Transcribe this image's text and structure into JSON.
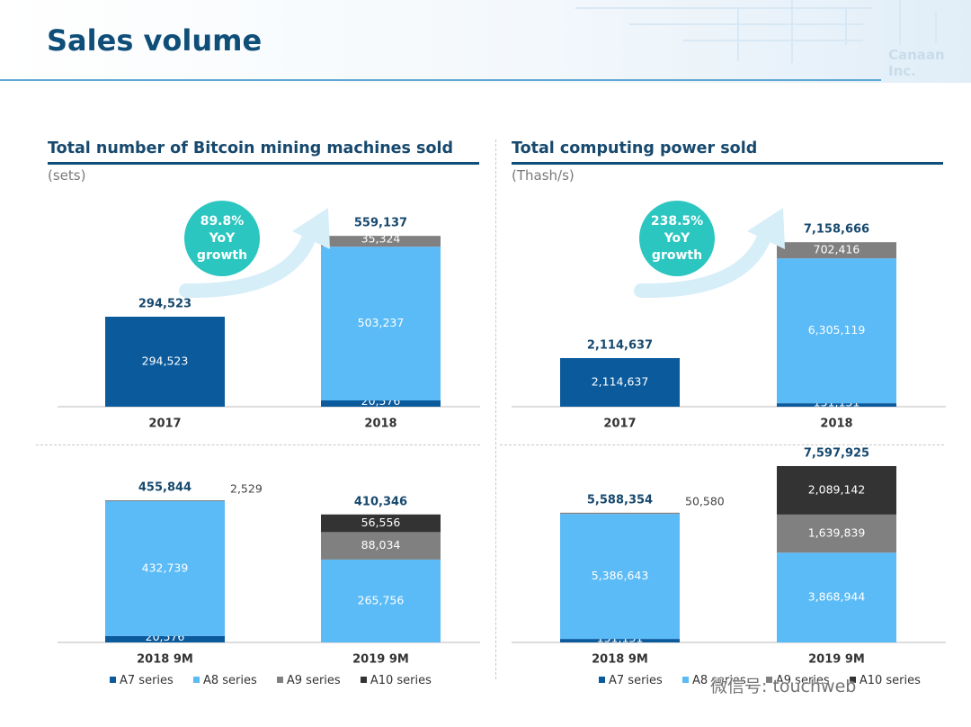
{
  "page": {
    "title": "Sales volume",
    "brand": "Canaan Inc.",
    "watermark": "微信号: touchweb"
  },
  "colors": {
    "A7": "#0a5a9c",
    "A8": "#5bbbf7",
    "A9": "#808080",
    "A10": "#333333",
    "growth_circle": "#2bc6c0",
    "title_blue": "#0e4e78"
  },
  "panels": {
    "left": {
      "title": "Total number of Bitcoin mining machines sold",
      "unit": "(sets)"
    },
    "right": {
      "title": "Total computing power sold",
      "unit": "(Thash/s)"
    }
  },
  "legend": {
    "items": [
      {
        "name": "A7 series",
        "color": "#0a5a9c"
      },
      {
        "name": "A8 series",
        "color": "#5bbbf7"
      },
      {
        "name": "A9 series",
        "color": "#808080"
      },
      {
        "name": "A10 series",
        "color": "#333333"
      }
    ]
  },
  "chart_data": [
    {
      "type": "bar",
      "stacked": true,
      "title": "Total number of Bitcoin mining machines sold",
      "unit": "(sets)",
      "categories": [
        "2017",
        "2018"
      ],
      "series": [
        {
          "name": "A7 series",
          "values": [
            294523,
            20576
          ],
          "labels": [
            "294,523",
            "20,576"
          ]
        },
        {
          "name": "A8 series",
          "values": [
            0,
            503237
          ],
          "labels": [
            "",
            "503,237"
          ]
        },
        {
          "name": "A9 series",
          "values": [
            0,
            35324
          ],
          "labels": [
            "",
            "35,324"
          ]
        },
        {
          "name": "A10 series",
          "values": [
            0,
            0
          ],
          "labels": [
            "",
            ""
          ]
        }
      ],
      "totals": [
        294523,
        559137
      ],
      "total_labels": [
        "294,523",
        "559,137"
      ],
      "growth": {
        "lines": [
          "89.8%",
          "YoY",
          "growth"
        ]
      }
    },
    {
      "type": "bar",
      "stacked": true,
      "title": "Total computing power sold",
      "unit": "(Thash/s)",
      "categories": [
        "2017",
        "2018"
      ],
      "series": [
        {
          "name": "A7 series",
          "values": [
            2114637,
            151131
          ],
          "labels": [
            "2,114,637",
            "151,131"
          ]
        },
        {
          "name": "A8 series",
          "values": [
            0,
            6305119
          ],
          "labels": [
            "",
            "6,305,119"
          ]
        },
        {
          "name": "A9 series",
          "values": [
            0,
            702416
          ],
          "labels": [
            "",
            "702,416"
          ]
        },
        {
          "name": "A10 series",
          "values": [
            0,
            0
          ],
          "labels": [
            "",
            ""
          ]
        }
      ],
      "totals": [
        2114637,
        7158666
      ],
      "total_labels": [
        "2,114,637",
        "7,158,666"
      ],
      "growth": {
        "lines": [
          "238.5%",
          "YoY",
          "growth"
        ]
      }
    },
    {
      "type": "bar",
      "stacked": true,
      "title": "Total number of Bitcoin mining machines sold",
      "unit": "(sets)",
      "categories": [
        "2018 9M",
        "2019 9M"
      ],
      "series": [
        {
          "name": "A7 series",
          "values": [
            20576,
            0
          ],
          "labels": [
            "20,576",
            ""
          ]
        },
        {
          "name": "A8 series",
          "values": [
            432739,
            265756
          ],
          "labels": [
            "432,739",
            "265,756"
          ]
        },
        {
          "name": "A9 series",
          "values": [
            2529,
            88034
          ],
          "labels": [
            "2,529",
            "88,034"
          ]
        },
        {
          "name": "A10 series",
          "values": [
            0,
            56556
          ],
          "labels": [
            "",
            "56,556"
          ]
        }
      ],
      "totals": [
        455844,
        410346
      ],
      "total_labels": [
        "455,844",
        "410,346"
      ]
    },
    {
      "type": "bar",
      "stacked": true,
      "title": "Total computing power sold",
      "unit": "(Thash/s)",
      "categories": [
        "2018 9M",
        "2019 9M"
      ],
      "series": [
        {
          "name": "A7 series",
          "values": [
            151131,
            0
          ],
          "labels": [
            "151,131",
            ""
          ]
        },
        {
          "name": "A8 series",
          "values": [
            5386643,
            3868944
          ],
          "labels": [
            "5,386,643",
            "3,868,944"
          ]
        },
        {
          "name": "A9 series",
          "values": [
            50580,
            1639839
          ],
          "labels": [
            "50,580",
            "1,639,839"
          ]
        },
        {
          "name": "A10 series",
          "values": [
            0,
            2089142
          ],
          "labels": [
            "",
            "2,089,142"
          ]
        }
      ],
      "totals": [
        5588354,
        7597925
      ],
      "total_labels": [
        "5,588,354",
        "7,597,925"
      ]
    }
  ]
}
